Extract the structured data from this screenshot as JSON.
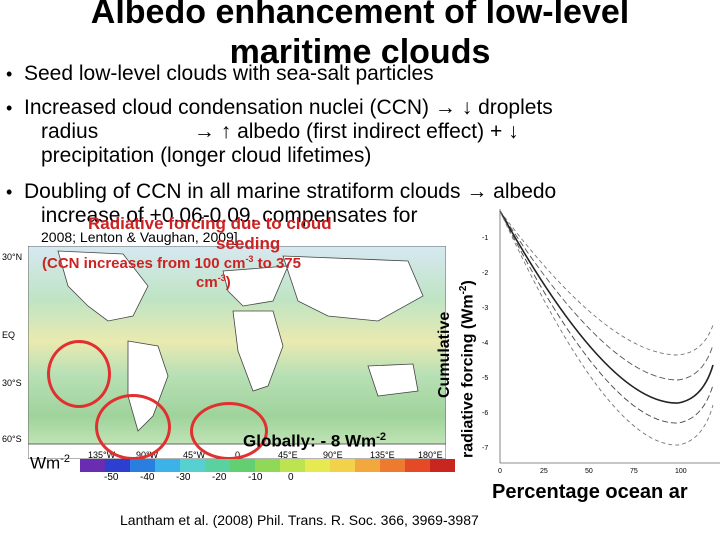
{
  "slide": {
    "title_line1": "Albedo enhancement of low-level",
    "title_line2": "maritime clouds",
    "bullet_char": "•",
    "bullets": {
      "b1": "Seed low-level clouds with sea-salt particles",
      "b2_a": "Increased cloud condensation nuclei (CCN)",
      "b2_b": "droplets",
      "b2_c": "radius",
      "b2_d": "albedo (first indirect effect) +",
      "b2_e": "precipitation (longer cloud lifetimes)",
      "b3_a": "Doubling of CCN in all marine stratiform clouds",
      "b3_b": "albedo",
      "b3_c": "increase of +0.06-0.09, compensates for",
      "b3_d": "2008; Lenton & Vaughan, 2009]"
    },
    "arrows": {
      "right": "→",
      "down": "↓",
      "up": "↑"
    },
    "overlay": {
      "radiative_forcing": "Radiative forcing due to cloud",
      "seeding": "seeding",
      "ccn_line1": "(CCN increases from 100 cm",
      "ccn_exp1": "-3",
      "ccn_line2": " to 375",
      "ccn_line3": "cm",
      "ccn_exp2": "-3",
      "ccn_close": ")"
    },
    "map": {
      "lat_labels": [
        "30°N",
        "EQ",
        "30°S",
        "60°S"
      ],
      "lon_labels": [
        "135°W",
        "90°W",
        "45°W",
        "0",
        "45°E",
        "90°E",
        "135°E",
        "180°E"
      ],
      "global_value": "Globally: - 8 Wm",
      "global_exp": "-2",
      "unit": "Wm",
      "unit_exp": "-2",
      "colorbar_ticks": [
        "-50",
        "-40",
        "-30",
        "-20",
        "-10",
        "0"
      ]
    },
    "plot": {
      "ylabel_line1": "Cumulative",
      "ylabel_line2": "radiative forcing (Wm",
      "ylabel_exp": "-2",
      "ylabel_close": ")",
      "xlabel": "Percentage ocean ar",
      "y_ticks": [
        "-1",
        "-2",
        "-3",
        "-4",
        "-5",
        "-6",
        "-7"
      ],
      "x_ticks": [
        "0",
        "25",
        "50",
        "75",
        "100"
      ]
    },
    "citation": "Lantham  et al. (2008) Phil. Trans. R. Soc. 366, 3969-3987"
  }
}
